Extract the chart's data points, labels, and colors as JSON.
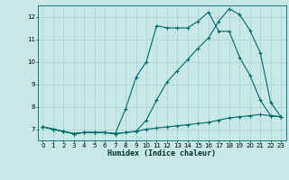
{
  "xlabel": "Humidex (Indice chaleur)",
  "bg_color": "#c8e8e8",
  "grid_color": "#b0d4d4",
  "line_color": "#006868",
  "xlim": [
    -0.5,
    23.5
  ],
  "ylim": [
    6.5,
    12.5
  ],
  "x_ticks": [
    0,
    1,
    2,
    3,
    4,
    5,
    6,
    7,
    8,
    9,
    10,
    11,
    12,
    13,
    14,
    15,
    16,
    17,
    18,
    19,
    20,
    21,
    22,
    23
  ],
  "y_ticks": [
    7,
    8,
    9,
    10,
    11,
    12
  ],
  "series1_x": [
    0,
    1,
    2,
    3,
    4,
    5,
    6,
    7,
    8,
    9,
    10,
    11,
    12,
    13,
    14,
    15,
    16,
    17,
    18,
    19,
    20,
    21,
    22,
    23
  ],
  "series1_y": [
    7.1,
    7.0,
    6.9,
    6.8,
    6.85,
    6.85,
    6.85,
    6.8,
    6.85,
    6.9,
    7.0,
    7.05,
    7.1,
    7.15,
    7.2,
    7.25,
    7.3,
    7.4,
    7.5,
    7.55,
    7.6,
    7.65,
    7.6,
    7.55
  ],
  "series2_x": [
    0,
    1,
    2,
    3,
    4,
    5,
    6,
    7,
    8,
    9,
    10,
    11,
    12,
    13,
    14,
    15,
    16,
    17,
    18,
    19,
    20,
    21,
    22,
    23
  ],
  "series2_y": [
    7.1,
    7.0,
    6.9,
    6.8,
    6.85,
    6.85,
    6.85,
    6.8,
    7.9,
    9.3,
    10.0,
    11.6,
    11.5,
    11.5,
    11.5,
    11.8,
    12.2,
    11.35,
    11.35,
    10.2,
    9.4,
    8.3,
    7.6,
    7.55
  ],
  "series3_x": [
    0,
    1,
    2,
    3,
    4,
    5,
    6,
    7,
    8,
    9,
    10,
    11,
    12,
    13,
    14,
    15,
    16,
    17,
    18,
    19,
    20,
    21,
    22,
    23
  ],
  "series3_y": [
    7.1,
    7.0,
    6.9,
    6.8,
    6.85,
    6.85,
    6.85,
    6.8,
    6.85,
    6.9,
    7.4,
    8.3,
    9.1,
    9.6,
    10.1,
    10.6,
    11.05,
    11.8,
    12.35,
    12.1,
    11.4,
    10.4,
    8.2,
    7.55
  ]
}
